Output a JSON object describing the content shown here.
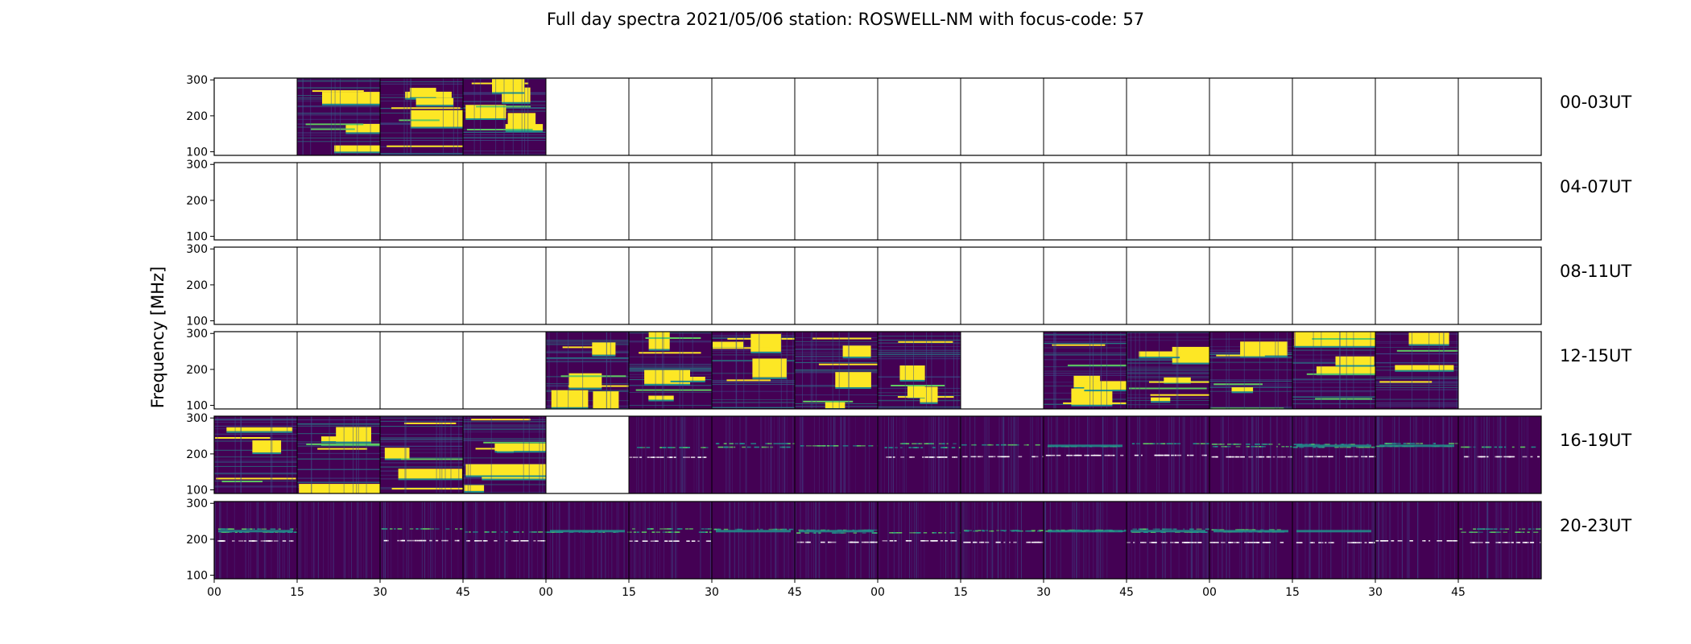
{
  "chart_data": {
    "type": "heatmap",
    "title": "Full day spectra 2021/05/06 station: ROSWELL-NM with focus-code: 57",
    "ylabel": "Frequency [MHz]",
    "xlabel": "",
    "ylim": [
      90,
      305
    ],
    "yticks": [
      100,
      200,
      300
    ],
    "xticks": [
      "00",
      "15",
      "30",
      "45",
      "00",
      "15",
      "30",
      "45",
      "00",
      "15",
      "30",
      "45",
      "00",
      "15",
      "30",
      "45"
    ],
    "rows": [
      {
        "label": "00-03UT",
        "cells": [
          "empty",
          "burst",
          "burst",
          "burst",
          "empty",
          "empty",
          "empty",
          "empty",
          "empty",
          "empty",
          "empty",
          "empty",
          "empty",
          "empty",
          "empty",
          "empty"
        ]
      },
      {
        "label": "04-07UT",
        "cells": [
          "empty",
          "empty",
          "empty",
          "empty",
          "empty",
          "empty",
          "empty",
          "empty",
          "empty",
          "empty",
          "empty",
          "empty",
          "empty",
          "empty",
          "empty",
          "empty"
        ]
      },
      {
        "label": "08-11UT",
        "cells": [
          "empty",
          "empty",
          "empty",
          "empty",
          "empty",
          "empty",
          "empty",
          "empty",
          "empty",
          "empty",
          "empty",
          "empty",
          "empty",
          "empty",
          "empty",
          "empty"
        ]
      },
      {
        "label": "12-15UT",
        "cells": [
          "empty",
          "empty",
          "empty",
          "empty",
          "burst",
          "burst",
          "burst",
          "burst",
          "burst",
          "empty",
          "burst",
          "burst",
          "burst",
          "burst",
          "burst",
          "empty"
        ]
      },
      {
        "label": "16-19UT",
        "cells": [
          "burst",
          "burst",
          "burst",
          "burst",
          "empty",
          "quiet",
          "quiet",
          "quiet",
          "quiet",
          "quiet",
          "quiet",
          "quiet",
          "quiet",
          "quiet",
          "quiet",
          "quiet"
        ]
      },
      {
        "label": "20-23UT",
        "cells": [
          "quiet",
          "quiet",
          "quiet",
          "quiet",
          "quiet",
          "quiet",
          "quiet",
          "quiet",
          "quiet",
          "quiet",
          "quiet",
          "quiet",
          "quiet",
          "quiet",
          "quiet",
          "quiet"
        ]
      }
    ],
    "colormap": {
      "low": "#440154",
      "mid": "#3b528b",
      "teal": "#21918c",
      "green": "#5ec962",
      "high": "#fde725"
    },
    "grid": false,
    "legend": "none"
  }
}
